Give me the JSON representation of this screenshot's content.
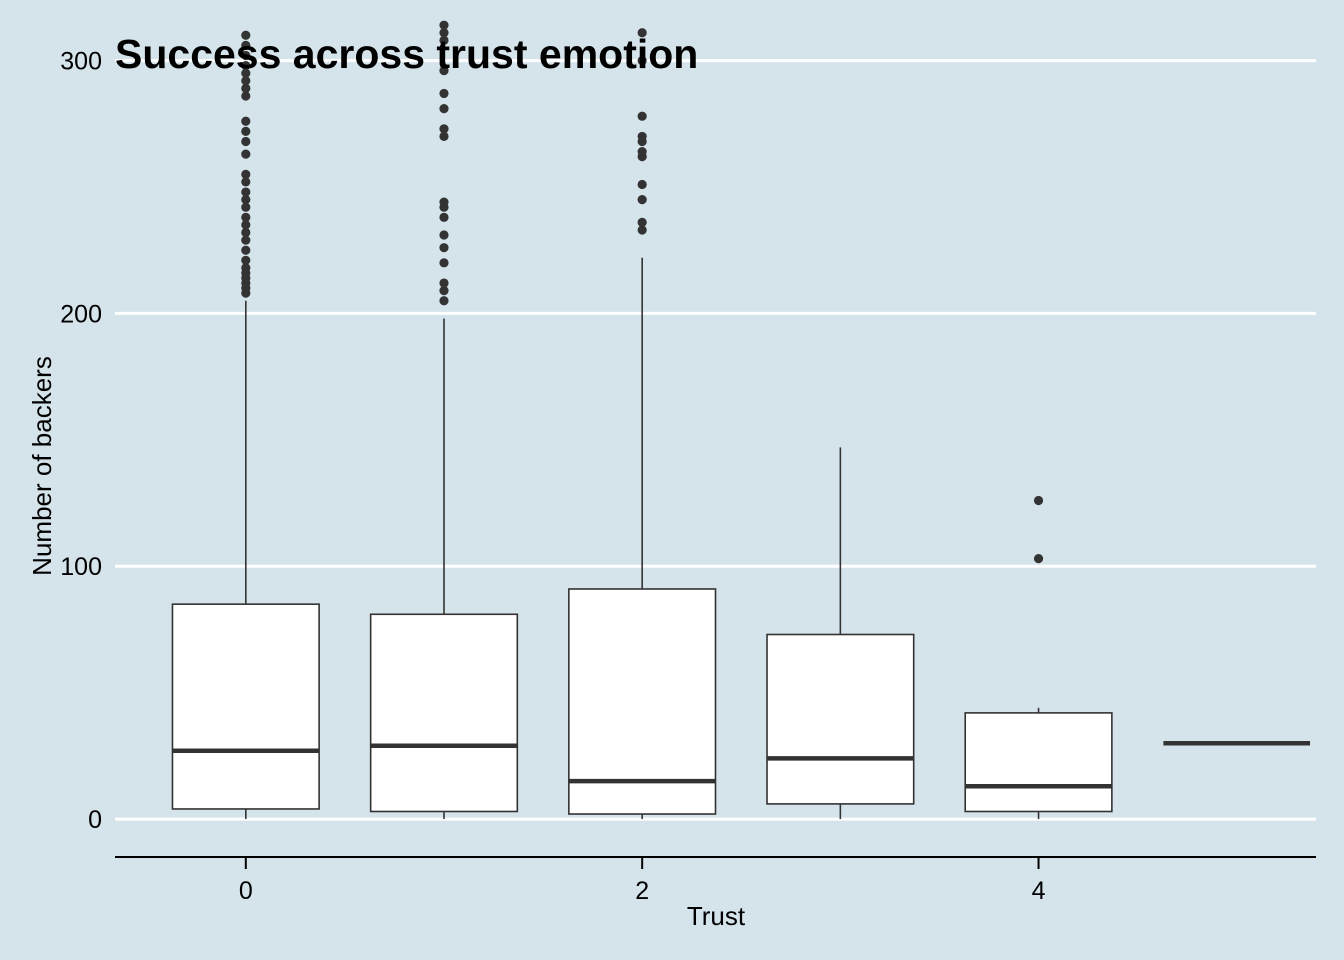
{
  "chart_data": {
    "type": "boxplot",
    "title": "Success across trust emotion",
    "xlabel": "Trust",
    "ylabel": "Number of backers",
    "x_ticks": [
      0,
      2,
      4
    ],
    "y_ticks": [
      0,
      100,
      200,
      300
    ],
    "xlim": [
      -0.66,
      5.4
    ],
    "ylim": [
      -15,
      320
    ],
    "grid": {
      "horizontal": true,
      "vertical": false
    },
    "colors": {
      "background": "#d5e4eb",
      "box_fill": "#ffffff",
      "stroke": "#333333",
      "grid": "#ffffff"
    },
    "boxes": [
      {
        "x": 0,
        "q1": 4,
        "median": 27,
        "q3": 85,
        "whisker_low": 0,
        "whisker_high": 205,
        "outliers": [
          208,
          210,
          212,
          214,
          216,
          218,
          221,
          225,
          229,
          232,
          235,
          238,
          242,
          245,
          248,
          252,
          255,
          263,
          268,
          272,
          276,
          286,
          289,
          292,
          295,
          298,
          302,
          306,
          310
        ]
      },
      {
        "x": 1,
        "q1": 3,
        "median": 29,
        "q3": 81,
        "whisker_low": 0,
        "whisker_high": 198,
        "outliers": [
          205,
          209,
          212,
          220,
          226,
          231,
          238,
          242,
          244,
          270,
          273,
          281,
          287,
          296,
          308,
          311,
          314
        ]
      },
      {
        "x": 2,
        "q1": 2,
        "median": 15,
        "q3": 91,
        "whisker_low": 0,
        "whisker_high": 222,
        "outliers": [
          233,
          236,
          245,
          251,
          262,
          264,
          268,
          270,
          278,
          300,
          311
        ]
      },
      {
        "x": 3,
        "q1": 6,
        "median": 24,
        "q3": 73,
        "whisker_low": 0,
        "whisker_high": 147,
        "outliers": []
      },
      {
        "x": 4,
        "q1": 3,
        "median": 13,
        "q3": 42,
        "whisker_low": 0,
        "whisker_high": 44,
        "outliers": [
          103,
          126
        ]
      },
      {
        "x": 5,
        "q1": 30,
        "median": 30,
        "q3": 30,
        "whisker_low": 30,
        "whisker_high": 30,
        "outliers": []
      }
    ]
  }
}
